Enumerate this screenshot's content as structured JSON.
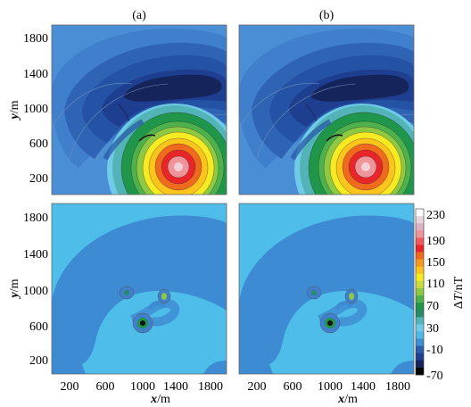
{
  "figure": {
    "panel_labels": [
      "(a)",
      "(b)"
    ],
    "x_axis_label_italic": "x",
    "x_axis_label_unit": "/m",
    "y_axis_label_italic": "y",
    "y_axis_label_unit": "/m",
    "x_ticks": [
      "200",
      "600",
      "1000",
      "1400",
      "1800"
    ],
    "y_ticks": [
      "200",
      "600",
      "1000",
      "1400",
      "1800"
    ]
  },
  "colorbar": {
    "label_prefix": "Δ",
    "label_italic": "T",
    "label_unit": "/nT",
    "ticks": [
      "230",
      "190",
      "150",
      "110",
      "70",
      "30",
      "-10",
      "-70"
    ],
    "colors": [
      "#ffffff",
      "#e9d4dc",
      "#ddb3c3",
      "#f0949b",
      "#f05a5c",
      "#e8262a",
      "#f06a1e",
      "#f59a1c",
      "#fcc41c",
      "#f6ea23",
      "#c8dc3c",
      "#8fc843",
      "#4eb14b",
      "#1f9649",
      "#2a8a6a",
      "#53b4b8",
      "#6fcbe8",
      "#4fb6e8",
      "#3f8fd0",
      "#2b5ea8",
      "#1f3f8f",
      "#16245c",
      "#000000"
    ]
  },
  "colors": {
    "background_blue": "#4a8fd6",
    "residual_light": "#4fbdea",
    "residual_dark": "#3d8bd2"
  }
}
